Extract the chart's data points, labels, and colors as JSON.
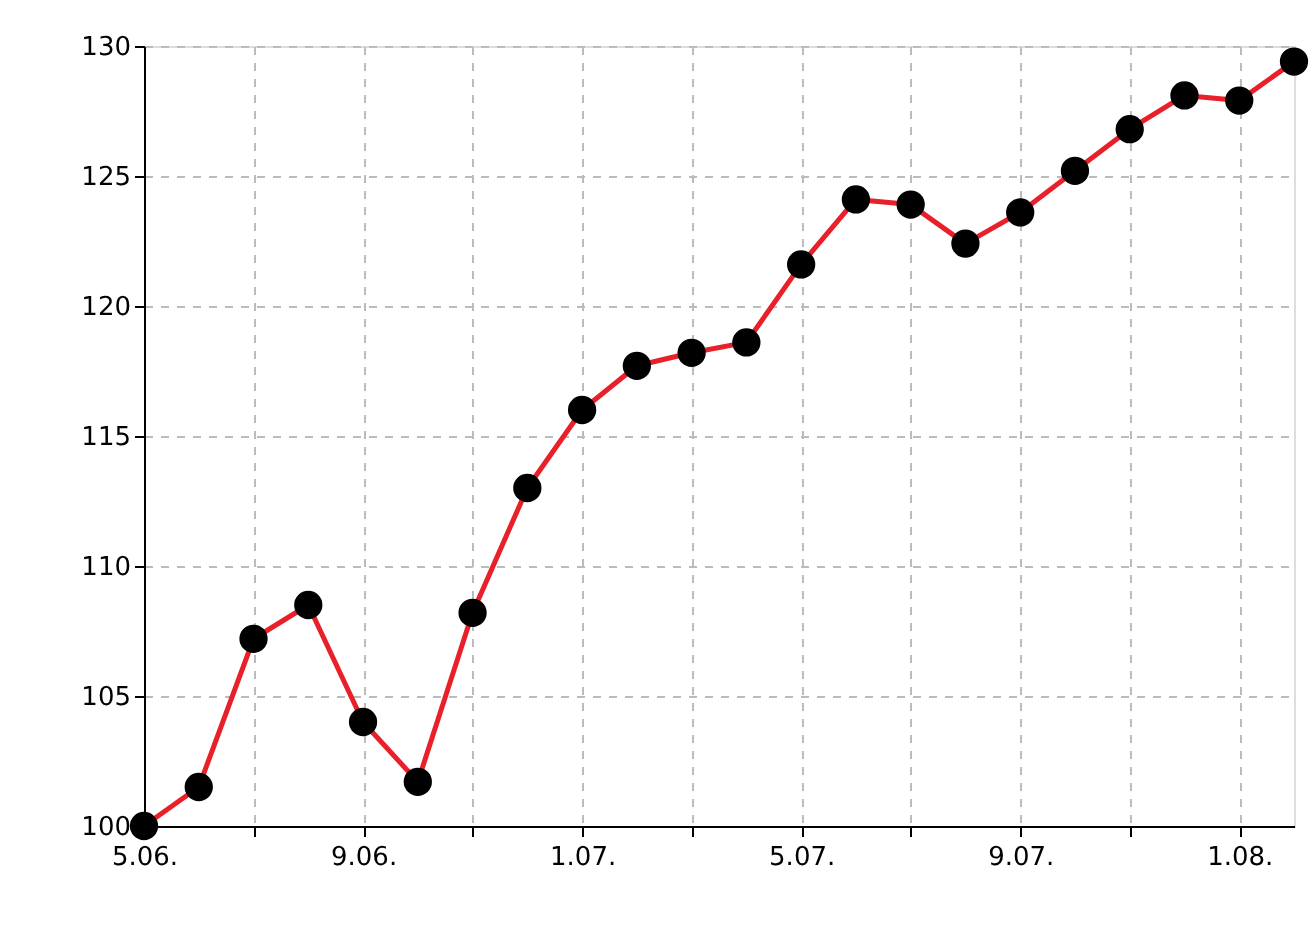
{
  "chart_data": {
    "type": "line",
    "categories": [
      "5.06.",
      null,
      null,
      null,
      "9.06.",
      null,
      null,
      null,
      "1.07.",
      null,
      null,
      null,
      "5.07.",
      null,
      null,
      null,
      "9.07.",
      null,
      null,
      null,
      "1.08.",
      null
    ],
    "series": [
      {
        "color": "#e8202a",
        "values": [
          100,
          101.5,
          107.2,
          108.5,
          104.0,
          101.7,
          108.2,
          113.0,
          116.0,
          117.7,
          118.2,
          118.6,
          121.6,
          124.1,
          123.9,
          122.4,
          123.6,
          125.2,
          126.8,
          128.1,
          127.9,
          129.4
        ]
      }
    ],
    "ylim": [
      100,
      130
    ],
    "yticks": [
      100,
      105,
      110,
      115,
      120,
      125,
      130
    ],
    "grid": true,
    "marker": "circle",
    "line_style": "solid"
  }
}
